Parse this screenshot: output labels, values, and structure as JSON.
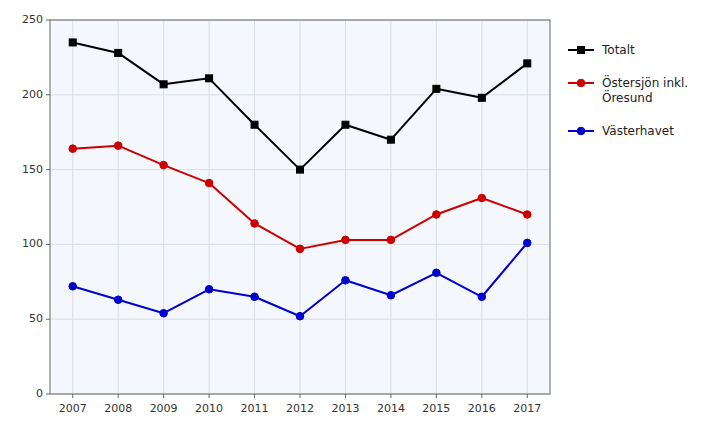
{
  "chart_data": {
    "type": "line",
    "x": [
      2007,
      2008,
      2009,
      2010,
      2011,
      2012,
      2013,
      2014,
      2015,
      2016,
      2017
    ],
    "series": [
      {
        "name": "Totalt",
        "color": "#000000",
        "marker": "square",
        "values": [
          235,
          228,
          207,
          211,
          180,
          150,
          180,
          170,
          204,
          198,
          221
        ]
      },
      {
        "name": "Östersjön inkl.\nÖresund",
        "color": "#cc0000",
        "marker": "circle",
        "values": [
          164,
          166,
          153,
          141,
          114,
          97,
          103,
          103,
          120,
          131,
          120
        ]
      },
      {
        "name": "Västerhavet",
        "color": "#0000cc",
        "marker": "circle",
        "values": [
          72,
          63,
          54,
          70,
          65,
          52,
          76,
          66,
          81,
          65,
          101
        ]
      }
    ],
    "xlim": [
      2006.5,
      2017.5
    ],
    "xticks": [
      2007,
      2008,
      2009,
      2010,
      2011,
      2012,
      2013,
      2014,
      2015,
      2016,
      2017
    ],
    "ylim": [
      0,
      250
    ],
    "yticks": [
      0,
      50,
      100,
      150,
      200,
      250
    ],
    "grid": true,
    "legend": "right"
  }
}
